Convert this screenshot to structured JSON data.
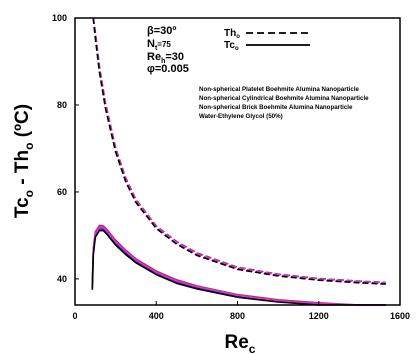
{
  "chart_data": {
    "type": "line",
    "title": "",
    "xlabel_main": "Re",
    "xlabel_sub": "c",
    "ylabel": "Tc",
    "ylabel_sub": "o",
    "ylabel_rest": " - Th",
    "ylabel_sub2": "o",
    "ylabel_units": " (ºC)",
    "xlim": [
      0,
      1600
    ],
    "ylim": [
      34,
      100
    ],
    "xticks": [
      0,
      400,
      800,
      1200,
      1600
    ],
    "yticks": [
      40,
      60,
      80,
      100
    ],
    "grid": false,
    "params": {
      "beta": "β=30º",
      "nt_main": "N",
      "nt_sub": "t",
      "nt_value": "=75",
      "reh_main": "Re",
      "reh_sub": "h",
      "reh_value": "=30",
      "phi": "φ=0.005"
    },
    "style_legend": [
      {
        "label_main": "Th",
        "label_sub": "o",
        "dash": "dashed"
      },
      {
        "label_main": "Tc",
        "label_sub": "o",
        "dash": "solid"
      }
    ],
    "fluid_legend": [
      {
        "name": "Non-spherical Platelet Boehmite Alumina Nanoparticle",
        "color": "#2b2ba8"
      },
      {
        "name": "Non-spherical Cylindrical Boehmite Alumina Nanoparticle",
        "color": "#e0126e"
      },
      {
        "name": "Non-spherical Brick Boehmite Alumina Nanoparticle",
        "color": "#c040d0"
      },
      {
        "name": "Water-Ethylene Glycol (50%)",
        "color": "#000000"
      }
    ],
    "series": [
      {
        "name": "Non-spherical Platelet Boehmite Alumina Nanoparticle",
        "color": "#2b2ba8",
        "dashed": {
          "x": [
            90,
            100,
            120,
            150,
            200,
            250,
            300,
            400,
            500,
            600,
            800,
            1000,
            1200,
            1400,
            1530
          ],
          "y": [
            102,
            96,
            88,
            79.5,
            69.5,
            62.5,
            57.8,
            51.8,
            48.2,
            45.6,
            42.4,
            40.9,
            39.9,
            39.3,
            39.0
          ]
        },
        "solid": {
          "x": [
            85,
            90,
            100,
            120,
            140,
            160,
            200,
            250,
            300,
            400,
            500,
            600,
            800,
            1000,
            1200,
            1400,
            1530
          ],
          "y": [
            38,
            46,
            50,
            51.5,
            51.5,
            50.5,
            48.2,
            46,
            44,
            41.3,
            39.3,
            38.0,
            36.0,
            34.9,
            34.2,
            33.7,
            33.4
          ]
        }
      },
      {
        "name": "Non-spherical Cylindrical Boehmite Alumina Nanoparticle",
        "color": "#e0126e",
        "dashed": {
          "x": [
            90,
            100,
            120,
            150,
            200,
            250,
            300,
            400,
            500,
            600,
            800,
            1000,
            1200,
            1400,
            1530
          ],
          "y": [
            103,
            97,
            89,
            80.5,
            70.2,
            63.2,
            58.3,
            52.2,
            48.6,
            46.0,
            42.7,
            41.1,
            40.1,
            39.5,
            39.2
          ]
        },
        "solid": {
          "x": [
            85,
            90,
            100,
            120,
            140,
            160,
            200,
            250,
            300,
            400,
            500,
            600,
            800,
            1000,
            1200,
            1400,
            1530
          ],
          "y": [
            39,
            47,
            50.8,
            52.3,
            52.2,
            51.2,
            48.9,
            46.6,
            44.6,
            41.8,
            39.8,
            38.4,
            36.4,
            35.2,
            34.5,
            34.0,
            33.7
          ]
        }
      },
      {
        "name": "Non-spherical Brick Boehmite Alumina Nanoparticle",
        "color": "#c040d0",
        "dashed": {
          "x": [
            90,
            100,
            120,
            150,
            200,
            250,
            300,
            400,
            500,
            600,
            800,
            1000,
            1200,
            1400,
            1530
          ],
          "y": [
            102.5,
            96.5,
            88.5,
            80,
            69.8,
            62.8,
            58.0,
            52.0,
            48.4,
            45.8,
            42.5,
            41.0,
            40.0,
            39.4,
            39.1
          ]
        },
        "solid": {
          "x": [
            85,
            90,
            100,
            120,
            140,
            160,
            200,
            250,
            300,
            400,
            500,
            600,
            800,
            1000,
            1200,
            1400,
            1530
          ],
          "y": [
            38.5,
            46.5,
            50.4,
            51.9,
            51.8,
            50.8,
            48.5,
            46.3,
            44.3,
            41.5,
            39.5,
            38.2,
            36.2,
            35.0,
            34.3,
            33.8,
            33.5
          ]
        }
      },
      {
        "name": "Water-Ethylene Glycol (50%)",
        "color": "#000000",
        "dashed": {
          "x": [
            90,
            100,
            120,
            150,
            200,
            250,
            300,
            400,
            500,
            600,
            800,
            1000,
            1200,
            1400,
            1530
          ],
          "y": [
            101.5,
            95.5,
            87.6,
            79.2,
            69.2,
            62.3,
            57.6,
            51.6,
            48.0,
            45.4,
            42.2,
            40.7,
            39.7,
            39.1,
            38.8
          ]
        },
        "solid": {
          "x": [
            85,
            90,
            100,
            120,
            140,
            160,
            200,
            250,
            300,
            400,
            500,
            600,
            800,
            1000,
            1200,
            1400,
            1530
          ],
          "y": [
            37.5,
            45.5,
            49.6,
            51.1,
            51.1,
            50.1,
            47.8,
            45.6,
            43.7,
            41.0,
            39.0,
            37.7,
            35.8,
            34.7,
            34.0,
            33.5,
            33.2
          ]
        }
      }
    ]
  }
}
